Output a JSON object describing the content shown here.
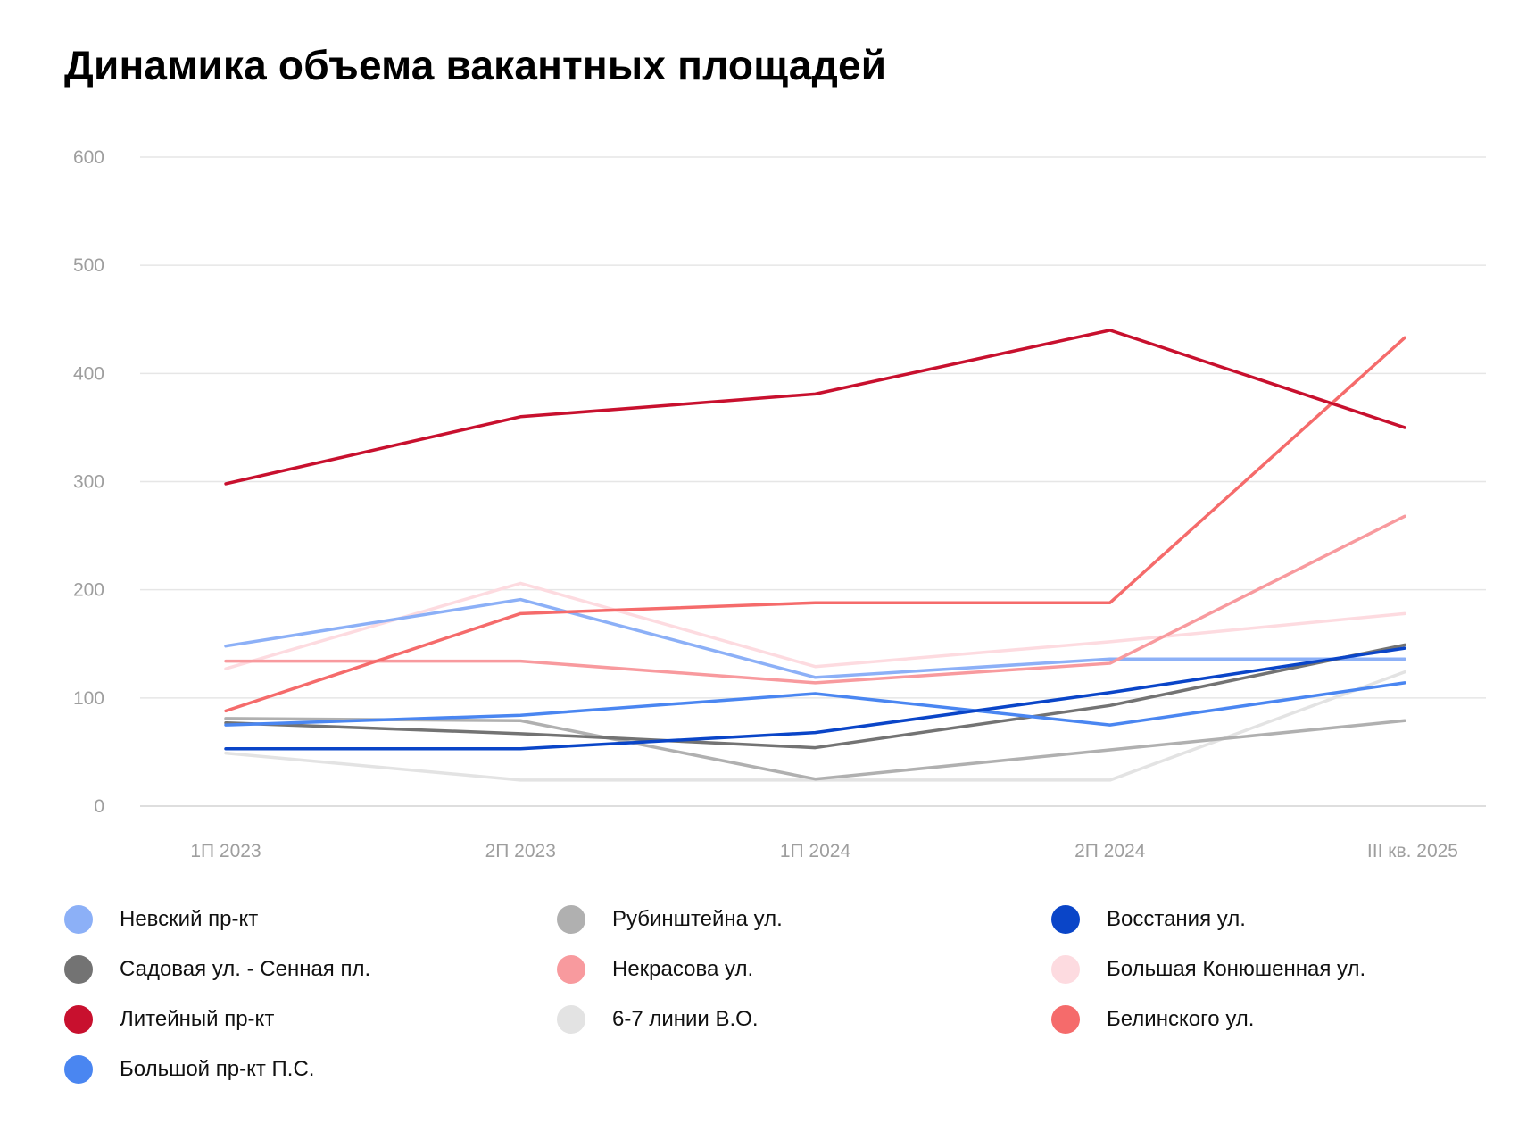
{
  "chart_data": {
    "type": "line",
    "title": "Динамика объема вакантных площадей",
    "xlabel": "",
    "ylabel": "",
    "categories": [
      "1П 2023",
      "2П 2023",
      "1П 2024",
      "2П 2024",
      "III кв. 2025"
    ],
    "ylim": [
      0,
      600
    ],
    "yticks": [
      0,
      100,
      200,
      300,
      400,
      500,
      600
    ],
    "grid": true,
    "legend_position": "bottom",
    "series": [
      {
        "name": "Невский пр-кт",
        "color": "#8cb0f7",
        "values": [
          148,
          191,
          119,
          136,
          136
        ]
      },
      {
        "name": "Рубинштейна ул.",
        "color": "#b0b0b0",
        "values": [
          81,
          79,
          25,
          52,
          79
        ]
      },
      {
        "name": "Восстания ул.",
        "color": "#0a45c8",
        "values": [
          53,
          53,
          68,
          105,
          146
        ]
      },
      {
        "name": "Садовая ул. - Сенная пл.",
        "color": "#737373",
        "values": [
          77,
          67,
          54,
          93,
          149
        ]
      },
      {
        "name": "Некрасова ул.",
        "color": "#f89a9e",
        "values": [
          134,
          134,
          114,
          132,
          268
        ]
      },
      {
        "name": "Большая Конюшенная ул.",
        "color": "#fddbe0",
        "values": [
          127,
          206,
          129,
          152,
          178
        ]
      },
      {
        "name": "Литейный пр-кт",
        "color": "#c8102e",
        "values": [
          298,
          360,
          381,
          440,
          350
        ]
      },
      {
        "name": "6-7 линии В.О.",
        "color": "#e3e3e3",
        "values": [
          49,
          24,
          24,
          24,
          124
        ]
      },
      {
        "name": "Белинского ул.",
        "color": "#f56b6b",
        "values": [
          88,
          178,
          188,
          188,
          433
        ]
      },
      {
        "name": "Большой пр-кт П.С.",
        "color": "#4a86f1",
        "values": [
          75,
          84,
          104,
          75,
          114
        ]
      }
    ]
  }
}
